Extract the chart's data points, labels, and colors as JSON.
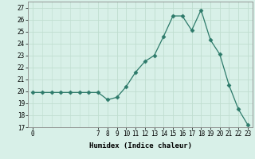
{
  "x": [
    0,
    1,
    2,
    3,
    4,
    5,
    6,
    7,
    8,
    9,
    10,
    11,
    12,
    13,
    14,
    15,
    16,
    17,
    18,
    19,
    20,
    21,
    22,
    23
  ],
  "y": [
    19.9,
    19.9,
    19.9,
    19.9,
    19.9,
    19.9,
    19.9,
    19.9,
    19.3,
    19.5,
    20.4,
    21.6,
    22.5,
    23.0,
    24.6,
    26.3,
    26.3,
    25.1,
    26.8,
    24.3,
    23.1,
    20.5,
    18.5,
    17.2
  ],
  "line_color": "#2d7a6a",
  "marker": "D",
  "marker_size": 2.5,
  "bg_color": "#d8f0e8",
  "grid_color": "#c0ddd0",
  "xlabel": "Humidex (Indice chaleur)",
  "ylim": [
    17,
    27.5
  ],
  "yticks": [
    17,
    18,
    19,
    20,
    21,
    22,
    23,
    24,
    25,
    26,
    27
  ],
  "xticks": [
    0,
    7,
    8,
    9,
    10,
    11,
    12,
    13,
    14,
    15,
    16,
    17,
    18,
    19,
    20,
    21,
    22,
    23
  ],
  "xlabel_fontsize": 6.5,
  "tick_fontsize": 5.5
}
